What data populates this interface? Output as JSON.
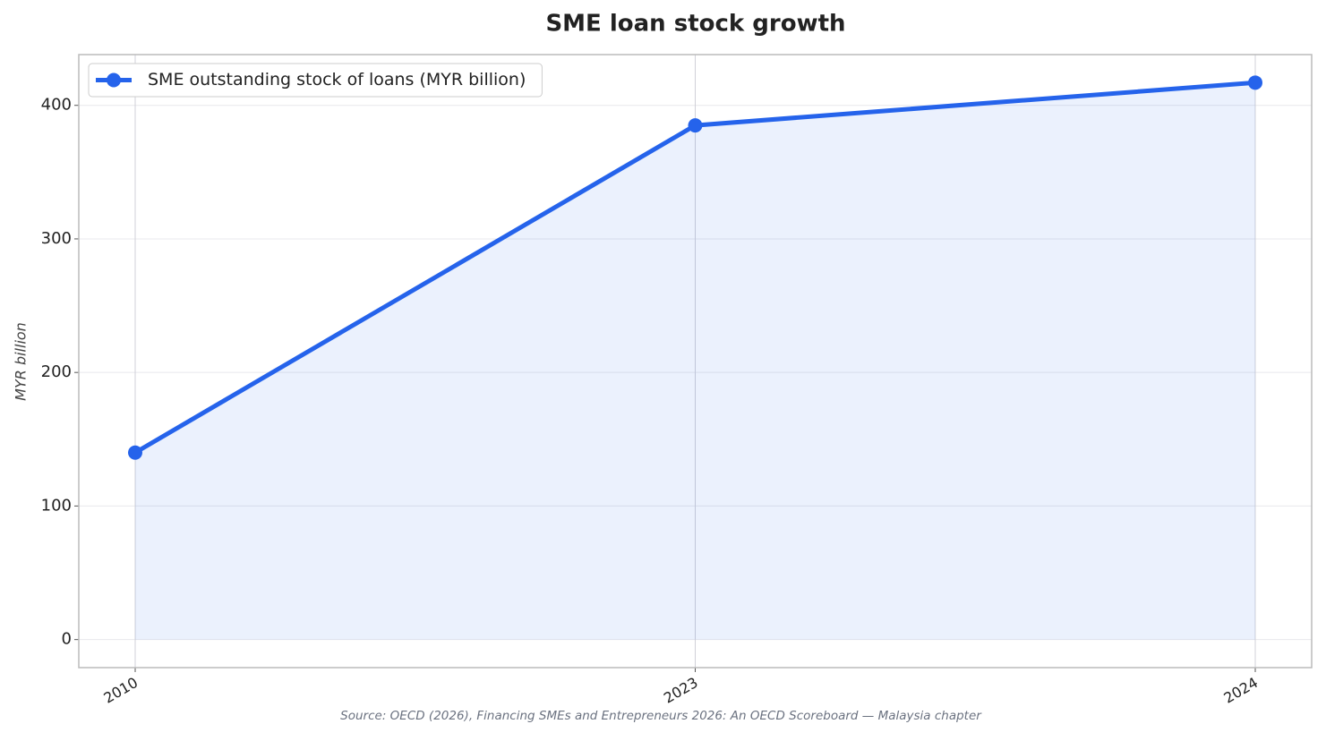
{
  "chart_data": {
    "type": "line",
    "title": "SME loan stock growth",
    "y_label": "MYR billion",
    "source": "Source: OECD (2026), Financing SMEs and Entrepreneurs 2026: An OECD Scoreboard — Malaysia chapter",
    "categories": [
      "2010",
      "2023",
      "2024"
    ],
    "series": [
      {
        "name": "SME outstanding stock of loans (MYR billion)",
        "color": "#2563eb",
        "values": [
          140,
          385,
          417
        ]
      }
    ],
    "ylim": [
      -21,
      438
    ],
    "yticks": [
      0,
      100,
      200,
      300,
      400
    ],
    "grid": true,
    "area_fill": true,
    "legend": "upper left"
  }
}
